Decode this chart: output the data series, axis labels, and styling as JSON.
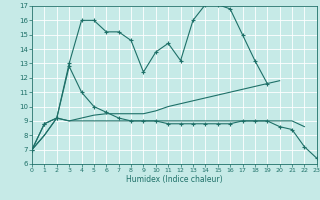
{
  "xlabel": "Humidex (Indice chaleur)",
  "xlim": [
    0,
    23
  ],
  "ylim": [
    6,
    17
  ],
  "yticks": [
    6,
    7,
    8,
    9,
    10,
    11,
    12,
    13,
    14,
    15,
    16,
    17
  ],
  "xticks": [
    0,
    1,
    2,
    3,
    4,
    5,
    6,
    7,
    8,
    9,
    10,
    11,
    12,
    13,
    14,
    15,
    16,
    17,
    18,
    19,
    20,
    21,
    22,
    23
  ],
  "bg_color": "#c6eae7",
  "grid_color": "#ffffff",
  "line_color": "#1e7068",
  "lines": [
    {
      "x": [
        0,
        1,
        2,
        3,
        4,
        5,
        6,
        7,
        8,
        9,
        10,
        11,
        12,
        13,
        14,
        15,
        16,
        17,
        18,
        19
      ],
      "y": [
        7.0,
        8.8,
        9.2,
        13.0,
        16.0,
        16.0,
        15.2,
        15.2,
        14.6,
        12.4,
        13.8,
        14.4,
        13.2,
        16.0,
        17.1,
        17.1,
        16.8,
        15.0,
        13.2,
        11.6
      ],
      "marker": "+"
    },
    {
      "x": [
        0,
        1,
        2,
        3,
        4,
        5,
        6,
        7,
        8,
        9,
        10,
        11,
        12,
        13,
        14,
        15,
        16,
        17,
        18,
        19,
        20,
        21,
        22,
        23
      ],
      "y": [
        7.0,
        8.0,
        9.2,
        9.0,
        9.2,
        9.4,
        9.5,
        9.5,
        9.5,
        9.5,
        9.7,
        10.0,
        10.2,
        10.4,
        10.6,
        10.8,
        11.0,
        11.2,
        11.4,
        11.6,
        11.8,
        null,
        null,
        null
      ],
      "marker": null
    },
    {
      "x": [
        0,
        1,
        2,
        3,
        4,
        5,
        6,
        7,
        8,
        9,
        10,
        11,
        12,
        13,
        14,
        15,
        16,
        17,
        18,
        19,
        20,
        21,
        22,
        23
      ],
      "y": [
        7.0,
        8.8,
        9.2,
        12.8,
        11.0,
        10.0,
        9.6,
        9.2,
        9.0,
        9.0,
        9.0,
        8.8,
        8.8,
        8.8,
        8.8,
        8.8,
        8.8,
        9.0,
        9.0,
        9.0,
        8.6,
        8.4,
        7.2,
        6.4
      ],
      "marker": "+"
    },
    {
      "x": [
        0,
        1,
        2,
        3,
        4,
        5,
        6,
        7,
        8,
        9,
        10,
        11,
        12,
        13,
        14,
        15,
        16,
        17,
        18,
        19,
        20,
        21,
        22,
        23
      ],
      "y": [
        7.0,
        8.0,
        9.2,
        9.0,
        9.0,
        9.0,
        9.0,
        9.0,
        9.0,
        9.0,
        9.0,
        9.0,
        9.0,
        9.0,
        9.0,
        9.0,
        9.0,
        9.0,
        9.0,
        9.0,
        9.0,
        9.0,
        8.6,
        null
      ],
      "marker": null
    }
  ]
}
